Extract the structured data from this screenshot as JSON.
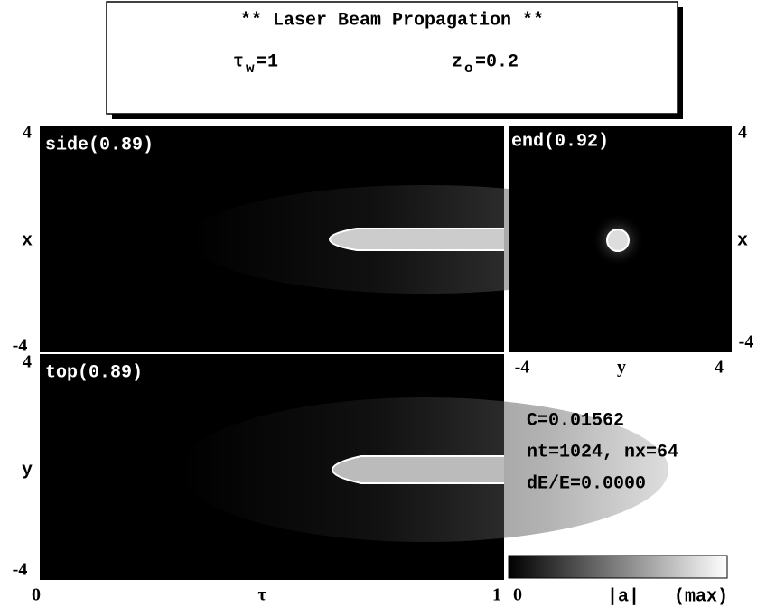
{
  "header": {
    "title": "** Laser Beam Propagation **",
    "params": [
      {
        "symbol": "τ",
        "subscript": "w",
        "value": "=1"
      },
      {
        "symbol": "z",
        "subscript": "o",
        "value": "=0.2"
      }
    ]
  },
  "panels": {
    "side": {
      "label": "side(0.89)",
      "y_top": "4",
      "y_label": "x",
      "y_bottom": "-4"
    },
    "top": {
      "label": "top(0.89)",
      "y_top": "4",
      "y_label": "y",
      "y_bottom": "-4",
      "x_left": "0",
      "x_label": "τ",
      "x_right": "1"
    },
    "end": {
      "label": "end(0.92)",
      "y_top": "4",
      "y_label": "x",
      "y_bottom": "-4",
      "x_left": "-4",
      "x_label": "y",
      "x_right": "4"
    }
  },
  "info": [
    "C=0.01562",
    "nt=1024, nx=64",
    "dE/E=0.0000"
  ],
  "colorbar": {
    "min": "0",
    "label": "|a|",
    "max": "(max)"
  }
}
